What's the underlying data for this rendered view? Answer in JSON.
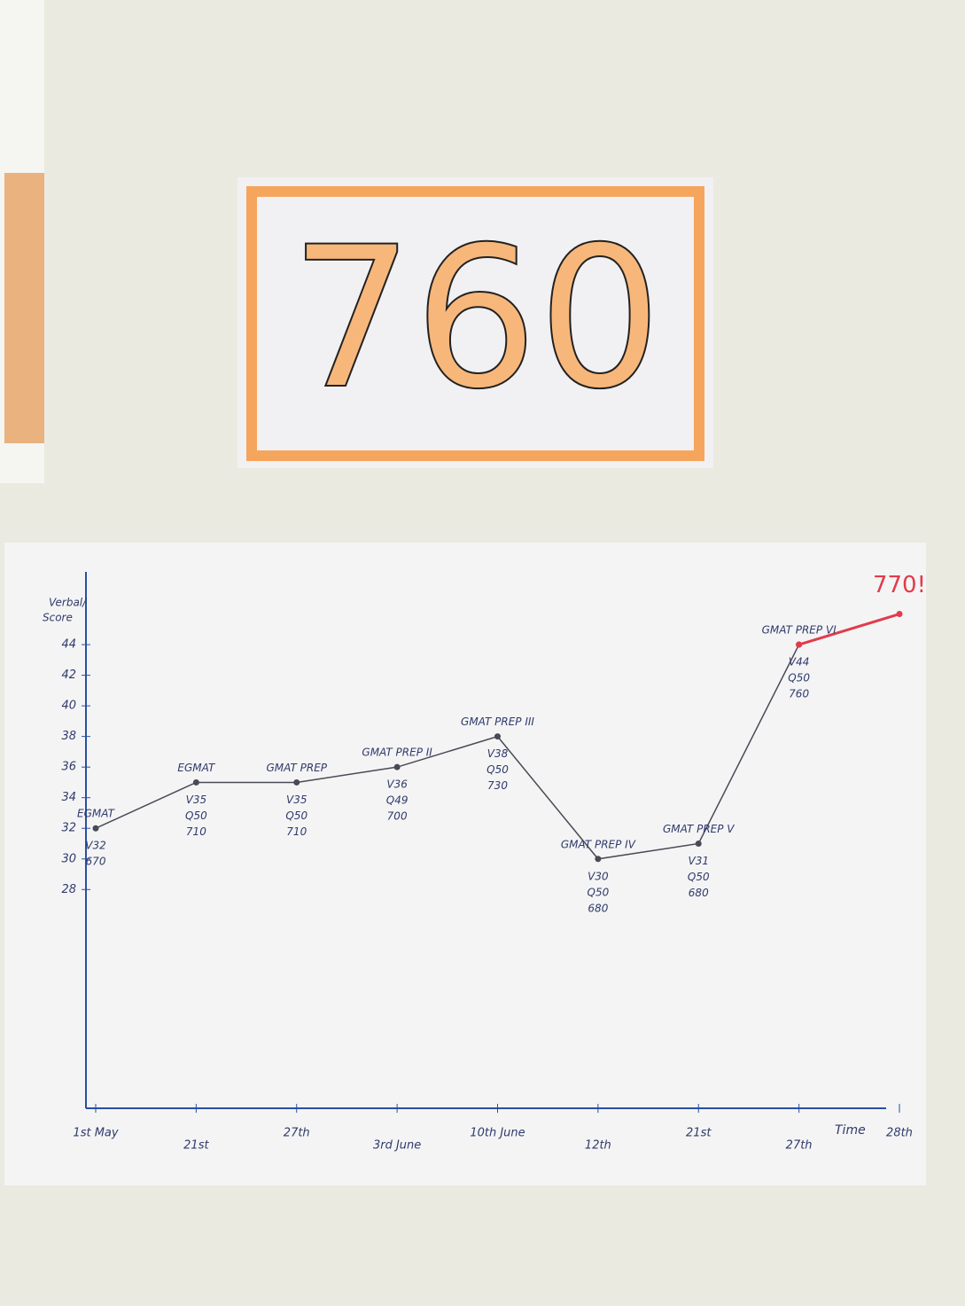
{
  "sign": {
    "text": "760"
  },
  "chart_data": {
    "type": "line",
    "y_label": [
      "Verbal/",
      "Score"
    ],
    "categories": [
      "1st May",
      "21st",
      "27th",
      "3rd June",
      "10th June",
      "12th",
      "21st",
      "27th",
      "28th"
    ],
    "series": [
      {
        "color": "#4a4a55",
        "values": [
          32,
          35,
          35,
          36,
          38,
          30,
          31,
          44,
          null
        ]
      },
      {
        "color": "#e23b4a",
        "values": [
          null,
          null,
          null,
          null,
          null,
          null,
          null,
          44,
          46
        ]
      }
    ],
    "point_labels": [
      [
        "EGMAT",
        "V32",
        "670"
      ],
      [
        "EGMAT",
        "V35",
        "Q50",
        "710"
      ],
      [
        "GMAT PREP",
        "V35",
        "Q50",
        "710"
      ],
      [
        "GMAT PREP II",
        "V36",
        "Q49",
        "700"
      ],
      [
        "GMAT PREP III",
        "V38",
        "Q50",
        "730"
      ],
      [
        "GMAT PREP IV",
        "V30",
        "Q50",
        "680"
      ],
      [
        "GMAT PREP V",
        "V31",
        "Q50",
        "680"
      ],
      [
        "GMAT PREP VI",
        "V44",
        "Q50",
        "760"
      ],
      [
        "770!"
      ]
    ],
    "ylim": [
      14,
      48
    ],
    "yticks": [
      28,
      30,
      32,
      34,
      36,
      38,
      40,
      42,
      44
    ],
    "x_label": "Time"
  }
}
